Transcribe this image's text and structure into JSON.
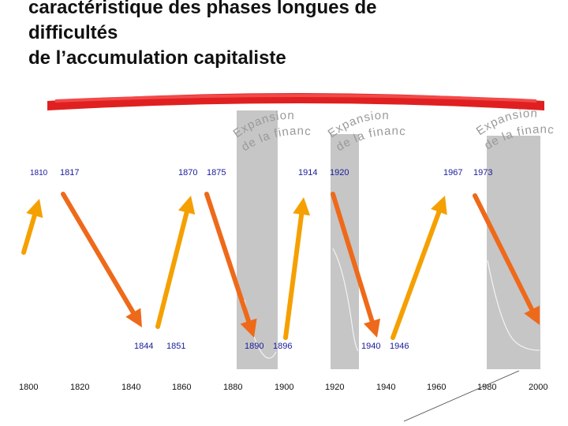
{
  "title": {
    "lines": [
      "caractéristique des phases longues de",
      "difficultés",
      "de l’accumulation capitaliste"
    ]
  },
  "finance_labels": [
    {
      "line1": "Expansion",
      "line2": "de la finance"
    },
    {
      "line1": "Expansion",
      "line2": "de la finance"
    },
    {
      "line1": "Expansion",
      "line2": "de la finance"
    }
  ],
  "peak_years": [
    "1810",
    "1817",
    "1870",
    "1875",
    "1914",
    "1920",
    "1967",
    "1973"
  ],
  "trough_years": [
    "1844",
    "1851",
    "1890",
    "1896",
    "1940",
    "1946"
  ],
  "axis_years": [
    "1800",
    "1820",
    "1840",
    "1860",
    "1880",
    "1900",
    "1920",
    "1940",
    "1960",
    "1980",
    "2000"
  ],
  "colors": {
    "rising_arrow": "#f5a000",
    "falling_arrow": "#ee6a1a",
    "shade_band": "#c6c6c6",
    "red_stroke": "#e02020",
    "peak_text": "#1a1a9a"
  },
  "icons": {
    "rising": "up-arrow-icon",
    "falling": "down-arrow-icon"
  }
}
